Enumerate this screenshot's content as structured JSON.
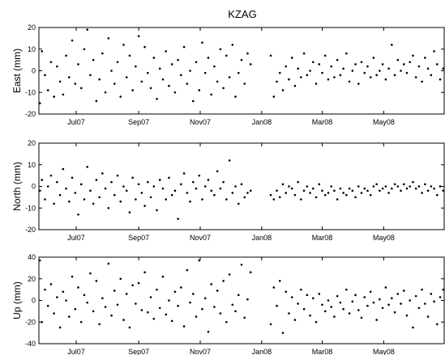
{
  "chart_data": [
    {
      "type": "scatter",
      "title": "KZAG",
      "ylabel": "East (mm)",
      "ylim": [
        -20,
        20
      ],
      "yticks": [
        -20,
        -10,
        0,
        10,
        20
      ],
      "xlim": [
        "2007-05-25",
        "2008-06-30"
      ],
      "xticks": [
        {
          "date": "2007-07-01",
          "label": "Jul07"
        },
        {
          "date": "2007-09-01",
          "label": "Sep07"
        },
        {
          "date": "2007-11-01",
          "label": "Nov07"
        },
        {
          "date": "2008-01-01",
          "label": "Jan08"
        },
        {
          "date": "2008-03-01",
          "label": "Mar08"
        },
        {
          "date": "2008-05-01",
          "label": "May08"
        }
      ],
      "series": [
        {
          "x": [
            "2007-05-26",
            "2007-05-28",
            "2007-05-31",
            "2007-06-03",
            "2007-06-06",
            "2007-06-09",
            "2007-06-12",
            "2007-06-15",
            "2007-06-18",
            "2007-06-21",
            "2007-06-24",
            "2007-06-27",
            "2007-06-30",
            "2007-07-03",
            "2007-07-06",
            "2007-07-09",
            "2007-07-12",
            "2007-07-15",
            "2007-07-18",
            "2007-07-21",
            "2007-07-24",
            "2007-07-27",
            "2007-07-30",
            "2007-08-02",
            "2007-08-05",
            "2007-08-08",
            "2007-08-11",
            "2007-08-14",
            "2007-08-17",
            "2007-08-20",
            "2007-08-23",
            "2007-08-26",
            "2007-08-29",
            "2007-09-01",
            "2007-09-04",
            "2007-09-07",
            "2007-09-10",
            "2007-09-13",
            "2007-09-16",
            "2007-09-19",
            "2007-09-22",
            "2007-09-25",
            "2007-09-28",
            "2007-10-01",
            "2007-10-04",
            "2007-10-07",
            "2007-10-10",
            "2007-10-13",
            "2007-10-16",
            "2007-10-19",
            "2007-10-22",
            "2007-10-25",
            "2007-10-28",
            "2007-10-31",
            "2007-11-03",
            "2007-11-06",
            "2007-11-09",
            "2007-11-12",
            "2007-11-15",
            "2007-11-18",
            "2007-11-21",
            "2007-11-24",
            "2007-11-27",
            "2007-11-30",
            "2007-12-03",
            "2007-12-06",
            "2007-12-09",
            "2007-12-12",
            "2007-12-15",
            "2007-12-18",
            "2007-12-21",
            "2008-01-10",
            "2008-01-13",
            "2008-01-16",
            "2008-01-19",
            "2008-01-22",
            "2008-01-25",
            "2008-01-28",
            "2008-01-31",
            "2008-02-03",
            "2008-02-06",
            "2008-02-09",
            "2008-02-12",
            "2008-02-15",
            "2008-02-18",
            "2008-02-21",
            "2008-02-24",
            "2008-02-27",
            "2008-03-01",
            "2008-03-04",
            "2008-03-07",
            "2008-03-10",
            "2008-03-13",
            "2008-03-16",
            "2008-03-19",
            "2008-03-22",
            "2008-03-25",
            "2008-03-28",
            "2008-03-31",
            "2008-04-03",
            "2008-04-06",
            "2008-04-09",
            "2008-04-12",
            "2008-04-15",
            "2008-04-18",
            "2008-04-21",
            "2008-04-24",
            "2008-04-27",
            "2008-04-30",
            "2008-05-03",
            "2008-05-06",
            "2008-05-09",
            "2008-05-12",
            "2008-05-15",
            "2008-05-18",
            "2008-05-21",
            "2008-05-24",
            "2008-05-27",
            "2008-05-30",
            "2008-06-02",
            "2008-06-05",
            "2008-06-08",
            "2008-06-11",
            "2008-06-14",
            "2008-06-17",
            "2008-06-20",
            "2008-06-23",
            "2008-06-26",
            "2008-06-29"
          ],
          "y": [
            -15,
            9,
            -2,
            -9,
            4,
            -12,
            2,
            -5,
            -11,
            7,
            -3,
            14,
            -6,
            3,
            -8,
            10,
            19,
            -2,
            5,
            -14,
            -4,
            8,
            -10,
            15,
            0,
            -6,
            4,
            -12,
            12,
            -3,
            7,
            -9,
            2,
            16,
            -5,
            11,
            -1,
            -8,
            6,
            -13,
            1,
            -4,
            9,
            -7,
            3,
            -10,
            5,
            -2,
            11,
            -6,
            0,
            -14,
            4,
            -9,
            13,
            -1,
            6,
            -11,
            2,
            -5,
            10,
            -8,
            7,
            -3,
            12,
            -12,
            -1,
            5,
            -6,
            8,
            3,
            7,
            -12,
            -5,
            -1,
            -9,
            2,
            -4,
            6,
            -7,
            1,
            -3,
            8,
            -2,
            0,
            4,
            -6,
            3,
            -1,
            7,
            -4,
            2,
            -3,
            5,
            -2,
            1,
            8,
            -5,
            0,
            3,
            -6,
            4,
            -1,
            2,
            -3,
            6,
            -2,
            0,
            3,
            -4,
            1,
            12,
            -2,
            5,
            0,
            3,
            -1,
            4,
            7,
            -3,
            2,
            -5,
            6,
            1,
            -2,
            9,
            3,
            -4,
            1
          ]
        }
      ]
    },
    {
      "type": "scatter",
      "title": "",
      "ylabel": "North (mm)",
      "ylim": [
        -20,
        20
      ],
      "yticks": [
        -20,
        -10,
        0,
        10,
        20
      ],
      "xlim": [
        "2007-05-25",
        "2008-06-30"
      ],
      "xticks": [
        {
          "date": "2007-07-01",
          "label": "Jul07"
        },
        {
          "date": "2007-09-01",
          "label": "Sep07"
        },
        {
          "date": "2007-11-01",
          "label": "Nov07"
        },
        {
          "date": "2008-01-01",
          "label": "Jan08"
        },
        {
          "date": "2008-03-01",
          "label": "Mar08"
        },
        {
          "date": "2008-05-01",
          "label": "May08"
        }
      ],
      "series": [
        {
          "x": [
            "2007-05-26",
            "2007-05-28",
            "2007-05-31",
            "2007-06-03",
            "2007-06-06",
            "2007-06-09",
            "2007-06-12",
            "2007-06-15",
            "2007-06-18",
            "2007-06-21",
            "2007-06-24",
            "2007-06-27",
            "2007-06-30",
            "2007-07-03",
            "2007-07-06",
            "2007-07-09",
            "2007-07-12",
            "2007-07-15",
            "2007-07-18",
            "2007-07-21",
            "2007-07-24",
            "2007-07-27",
            "2007-07-30",
            "2007-08-02",
            "2007-08-05",
            "2007-08-08",
            "2007-08-11",
            "2007-08-14",
            "2007-08-17",
            "2007-08-20",
            "2007-08-23",
            "2007-08-26",
            "2007-08-29",
            "2007-09-01",
            "2007-09-04",
            "2007-09-07",
            "2007-09-10",
            "2007-09-13",
            "2007-09-16",
            "2007-09-19",
            "2007-09-22",
            "2007-09-25",
            "2007-09-28",
            "2007-10-01",
            "2007-10-04",
            "2007-10-07",
            "2007-10-10",
            "2007-10-13",
            "2007-10-16",
            "2007-10-19",
            "2007-10-22",
            "2007-10-25",
            "2007-10-28",
            "2007-10-31",
            "2007-11-03",
            "2007-11-06",
            "2007-11-09",
            "2007-11-12",
            "2007-11-15",
            "2007-11-18",
            "2007-11-21",
            "2007-11-24",
            "2007-11-27",
            "2007-11-30",
            "2007-12-03",
            "2007-12-06",
            "2007-12-09",
            "2007-12-12",
            "2007-12-15",
            "2007-12-18",
            "2007-12-21",
            "2008-01-10",
            "2008-01-13",
            "2008-01-16",
            "2008-01-19",
            "2008-01-22",
            "2008-01-25",
            "2008-01-28",
            "2008-01-31",
            "2008-02-03",
            "2008-02-06",
            "2008-02-09",
            "2008-02-12",
            "2008-02-15",
            "2008-02-18",
            "2008-02-21",
            "2008-02-24",
            "2008-02-27",
            "2008-03-01",
            "2008-03-04",
            "2008-03-07",
            "2008-03-10",
            "2008-03-13",
            "2008-03-16",
            "2008-03-19",
            "2008-03-22",
            "2008-03-25",
            "2008-03-28",
            "2008-03-31",
            "2008-04-03",
            "2008-04-06",
            "2008-04-09",
            "2008-04-12",
            "2008-04-15",
            "2008-04-18",
            "2008-04-21",
            "2008-04-24",
            "2008-04-27",
            "2008-04-30",
            "2008-05-03",
            "2008-05-06",
            "2008-05-09",
            "2008-05-12",
            "2008-05-15",
            "2008-05-18",
            "2008-05-21",
            "2008-05-24",
            "2008-05-27",
            "2008-05-30",
            "2008-06-02",
            "2008-06-05",
            "2008-06-08",
            "2008-06-11",
            "2008-06-14",
            "2008-06-17",
            "2008-06-20",
            "2008-06-23",
            "2008-06-26",
            "2008-06-29"
          ],
          "y": [
            -2,
            3,
            -6,
            0,
            5,
            -8,
            2,
            -4,
            8,
            -1,
            -7,
            4,
            -3,
            -13,
            1,
            -6,
            9,
            -2,
            -8,
            3,
            -5,
            6,
            -1,
            -10,
            2,
            -4,
            5,
            -7,
            0,
            -2,
            -12,
            4,
            -6,
            1,
            -3,
            -9,
            2,
            -5,
            0,
            -11,
            3,
            -1,
            -6,
            4,
            -4,
            -2,
            -15,
            1,
            6,
            -3,
            -7,
            2,
            -1,
            5,
            -6,
            0,
            3,
            -2,
            -4,
            7,
            -1,
            2,
            -6,
            12,
            -3,
            0,
            -8,
            1,
            -5,
            -3,
            -2,
            -4,
            -6,
            -2,
            -5,
            1,
            -3,
            0,
            -1,
            -4,
            2,
            -6,
            -2,
            0,
            -3,
            -1,
            -5,
            1,
            -2,
            -4,
            -3,
            0,
            -2,
            -6,
            -1,
            -3,
            -4,
            -1,
            -2,
            -5,
            0,
            -3,
            -1,
            -2,
            -4,
            0,
            1,
            -2,
            -1,
            0,
            -3,
            -1,
            1,
            0,
            -2,
            1,
            -1,
            0,
            2,
            -1,
            0,
            -3,
            1,
            -2,
            0,
            -1,
            -4,
            0,
            -2
          ]
        }
      ]
    },
    {
      "type": "scatter",
      "title": "",
      "ylabel": "Up (mm)",
      "ylim": [
        -40,
        40
      ],
      "yticks": [
        -40,
        -20,
        0,
        20,
        40
      ],
      "xlim": [
        "2007-05-25",
        "2008-06-30"
      ],
      "xticks": [
        {
          "date": "2007-07-01",
          "label": "Jul07"
        },
        {
          "date": "2007-09-01",
          "label": "Sep07"
        },
        {
          "date": "2007-11-01",
          "label": "Nov07"
        },
        {
          "date": "2008-01-01",
          "label": "Jan08"
        },
        {
          "date": "2008-03-01",
          "label": "Mar08"
        },
        {
          "date": "2008-05-01",
          "label": "May08"
        }
      ],
      "series": [
        {
          "x": [
            "2007-05-26",
            "2007-05-28",
            "2007-05-31",
            "2007-06-03",
            "2007-06-06",
            "2007-06-09",
            "2007-06-12",
            "2007-06-15",
            "2007-06-18",
            "2007-06-21",
            "2007-06-24",
            "2007-06-27",
            "2007-06-30",
            "2007-07-03",
            "2007-07-06",
            "2007-07-09",
            "2007-07-12",
            "2007-07-15",
            "2007-07-18",
            "2007-07-21",
            "2007-07-24",
            "2007-07-27",
            "2007-07-30",
            "2007-08-02",
            "2007-08-05",
            "2007-08-08",
            "2007-08-11",
            "2007-08-14",
            "2007-08-17",
            "2007-08-20",
            "2007-08-23",
            "2007-08-26",
            "2007-08-29",
            "2007-09-01",
            "2007-09-04",
            "2007-09-07",
            "2007-09-10",
            "2007-09-13",
            "2007-09-16",
            "2007-09-19",
            "2007-09-22",
            "2007-09-25",
            "2007-09-28",
            "2007-10-01",
            "2007-10-04",
            "2007-10-07",
            "2007-10-10",
            "2007-10-13",
            "2007-10-16",
            "2007-10-19",
            "2007-10-22",
            "2007-10-25",
            "2007-10-28",
            "2007-10-31",
            "2007-11-03",
            "2007-11-06",
            "2007-11-09",
            "2007-11-12",
            "2007-11-15",
            "2007-11-18",
            "2007-11-21",
            "2007-11-24",
            "2007-11-27",
            "2007-11-30",
            "2007-12-03",
            "2007-12-06",
            "2007-12-09",
            "2007-12-12",
            "2007-12-15",
            "2007-12-18",
            "2007-12-21",
            "2008-01-10",
            "2008-01-13",
            "2008-01-16",
            "2008-01-19",
            "2008-01-22",
            "2008-01-25",
            "2008-01-28",
            "2008-01-31",
            "2008-02-03",
            "2008-02-06",
            "2008-02-09",
            "2008-02-12",
            "2008-02-15",
            "2008-02-18",
            "2008-02-21",
            "2008-02-24",
            "2008-02-27",
            "2008-03-01",
            "2008-03-04",
            "2008-03-07",
            "2008-03-10",
            "2008-03-13",
            "2008-03-16",
            "2008-03-19",
            "2008-03-22",
            "2008-03-25",
            "2008-03-28",
            "2008-03-31",
            "2008-04-03",
            "2008-04-06",
            "2008-04-09",
            "2008-04-12",
            "2008-04-15",
            "2008-04-18",
            "2008-04-21",
            "2008-04-24",
            "2008-04-27",
            "2008-04-30",
            "2008-05-03",
            "2008-05-06",
            "2008-05-09",
            "2008-05-12",
            "2008-05-15",
            "2008-05-18",
            "2008-05-21",
            "2008-05-24",
            "2008-05-27",
            "2008-05-30",
            "2008-06-02",
            "2008-06-05",
            "2008-06-08",
            "2008-06-11",
            "2008-06-14",
            "2008-06-17",
            "2008-06-20",
            "2008-06-23",
            "2008-06-26",
            "2008-06-29"
          ],
          "y": [
            37,
            -20,
            10,
            -5,
            15,
            -12,
            3,
            -25,
            8,
            0,
            -15,
            22,
            -8,
            12,
            -20,
            5,
            -2,
            25,
            -10,
            18,
            -22,
            2,
            -6,
            34,
            -14,
            9,
            -4,
            20,
            -18,
            6,
            -25,
            14,
            -3,
            16,
            -9,
            26,
            -11,
            3,
            -17,
            10,
            -7,
            22,
            -13,
            0,
            -19,
            8,
            -5,
            12,
            -24,
            28,
            -2,
            6,
            -15,
            37,
            -8,
            2,
            -29,
            15,
            -6,
            9,
            -12,
            18,
            -20,
            24,
            -4,
            -10,
            5,
            33,
            -16,
            1,
            26,
            -22,
            12,
            -5,
            18,
            -30,
            8,
            -12,
            3,
            -18,
            -3,
            10,
            -8,
            5,
            -14,
            2,
            -20,
            6,
            -4,
            -10,
            0,
            -6,
            -15,
            4,
            -2,
            -8,
            10,
            -12,
            -1,
            5,
            -9,
            -16,
            3,
            -5,
            8,
            -2,
            -18,
            1,
            -7,
            12,
            -4,
            2,
            -11,
            6,
            -3,
            9,
            -14,
            0,
            -25,
            4,
            -7,
            10,
            -3,
            -15,
            6,
            -1,
            -22,
            3,
            10
          ]
        }
      ]
    }
  ]
}
